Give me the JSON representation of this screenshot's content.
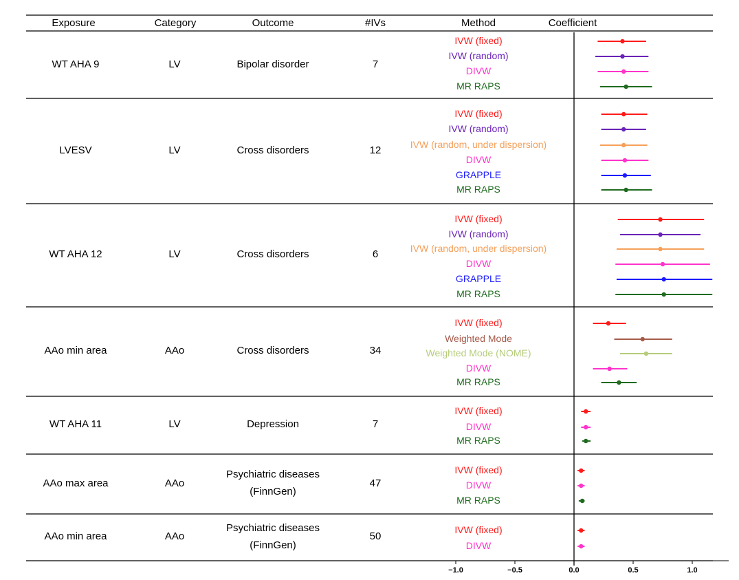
{
  "headers": {
    "exposure": "Exposure",
    "category": "Category",
    "outcome": "Outcome",
    "ivs": "#IVs",
    "method": "Method",
    "coefficient": "Coefficient"
  },
  "chart_data": {
    "type": "forest",
    "xlim": [
      -1.2,
      1.2
    ],
    "xticks": [
      -1.0,
      -0.5,
      0.0,
      0.5,
      1.0
    ],
    "xtick_labels": [
      "−1.0",
      "−0.5",
      "0.0",
      "0.5",
      "1.0"
    ],
    "method_colors": {
      "IVW (fixed)": "#ff1a1a",
      "IVW (random)": "#6a22b8",
      "IVW (random, under dispersion)": "#f5a05a",
      "DIVW": "#ff33cc",
      "GRAPPLE": "#1a1aff",
      "MR RAPS": "#1f6b1f",
      "Weighted Mode": "#a65a4a",
      "Weighted Mode (NOME)": "#b5cc7a"
    },
    "groups": [
      {
        "exposure": "WT AHA 9",
        "category": "LV",
        "outcome": [
          "Bipolar disorder"
        ],
        "ivs": "7",
        "estimates": [
          {
            "method": "IVW (fixed)",
            "est": 0.41,
            "lo": 0.2,
            "hi": 0.61
          },
          {
            "method": "IVW (random)",
            "est": 0.41,
            "lo": 0.18,
            "hi": 0.63
          },
          {
            "method": "DIVW",
            "est": 0.42,
            "lo": 0.2,
            "hi": 0.63
          },
          {
            "method": "MR RAPS",
            "est": 0.44,
            "lo": 0.22,
            "hi": 0.66
          }
        ]
      },
      {
        "exposure": "LVESV",
        "category": "LV",
        "outcome": [
          "Cross disorders"
        ],
        "ivs": "12",
        "estimates": [
          {
            "method": "IVW (fixed)",
            "est": 0.42,
            "lo": 0.23,
            "hi": 0.62
          },
          {
            "method": "IVW (random)",
            "est": 0.42,
            "lo": 0.23,
            "hi": 0.61
          },
          {
            "method": "IVW (random, under dispersion)",
            "est": 0.42,
            "lo": 0.22,
            "hi": 0.62
          },
          {
            "method": "DIVW",
            "est": 0.43,
            "lo": 0.23,
            "hi": 0.63
          },
          {
            "method": "GRAPPLE",
            "est": 0.43,
            "lo": 0.23,
            "hi": 0.65
          },
          {
            "method": "MR RAPS",
            "est": 0.44,
            "lo": 0.23,
            "hi": 0.66
          }
        ]
      },
      {
        "exposure": "WT AHA 12",
        "category": "LV",
        "outcome": [
          "Cross disorders"
        ],
        "ivs": "6",
        "estimates": [
          {
            "method": "IVW (fixed)",
            "est": 0.73,
            "lo": 0.37,
            "hi": 1.1
          },
          {
            "method": "IVW (random)",
            "est": 0.73,
            "lo": 0.39,
            "hi": 1.07
          },
          {
            "method": "IVW (random, under dispersion)",
            "est": 0.73,
            "lo": 0.36,
            "hi": 1.1
          },
          {
            "method": "DIVW",
            "est": 0.75,
            "lo": 0.35,
            "hi": 1.15
          },
          {
            "method": "GRAPPLE",
            "est": 0.76,
            "lo": 0.36,
            "hi": 1.17
          },
          {
            "method": "MR RAPS",
            "est": 0.76,
            "lo": 0.35,
            "hi": 1.17
          }
        ]
      },
      {
        "exposure": "AAo min area",
        "category": "AAo",
        "outcome": [
          "Cross disorders"
        ],
        "ivs": "34",
        "estimates": [
          {
            "method": "IVW (fixed)",
            "est": 0.29,
            "lo": 0.16,
            "hi": 0.44
          },
          {
            "method": "Weighted Mode",
            "est": 0.58,
            "lo": 0.34,
            "hi": 0.83
          },
          {
            "method": "Weighted Mode (NOME)",
            "est": 0.61,
            "lo": 0.39,
            "hi": 0.83
          },
          {
            "method": "DIVW",
            "est": 0.3,
            "lo": 0.16,
            "hi": 0.45
          },
          {
            "method": "MR RAPS",
            "est": 0.38,
            "lo": 0.23,
            "hi": 0.53
          }
        ]
      },
      {
        "exposure": "WT AHA 11",
        "category": "LV",
        "outcome": [
          "Depression"
        ],
        "ivs": "7",
        "estimates": [
          {
            "method": "IVW (fixed)",
            "est": 0.1,
            "lo": 0.06,
            "hi": 0.14
          },
          {
            "method": "DIVW",
            "est": 0.1,
            "lo": 0.06,
            "hi": 0.14
          },
          {
            "method": "MR RAPS",
            "est": 0.1,
            "lo": 0.07,
            "hi": 0.14
          }
        ]
      },
      {
        "exposure": "AAo max area",
        "category": "AAo",
        "outcome": [
          "Psychiatric diseases",
          "(FinnGen)"
        ],
        "ivs": "47",
        "estimates": [
          {
            "method": "IVW (fixed)",
            "est": 0.06,
            "lo": 0.03,
            "hi": 0.09
          },
          {
            "method": "DIVW",
            "est": 0.06,
            "lo": 0.03,
            "hi": 0.09
          },
          {
            "method": "MR RAPS",
            "est": 0.07,
            "lo": 0.04,
            "hi": 0.09
          }
        ]
      },
      {
        "exposure": "AAo min area",
        "category": "AAo",
        "outcome": [
          "Psychiatric diseases",
          "(FinnGen)"
        ],
        "ivs": "50",
        "estimates": [
          {
            "method": "IVW (fixed)",
            "est": 0.06,
            "lo": 0.03,
            "hi": 0.09
          },
          {
            "method": "DIVW",
            "est": 0.06,
            "lo": 0.03,
            "hi": 0.09
          }
        ]
      }
    ]
  }
}
